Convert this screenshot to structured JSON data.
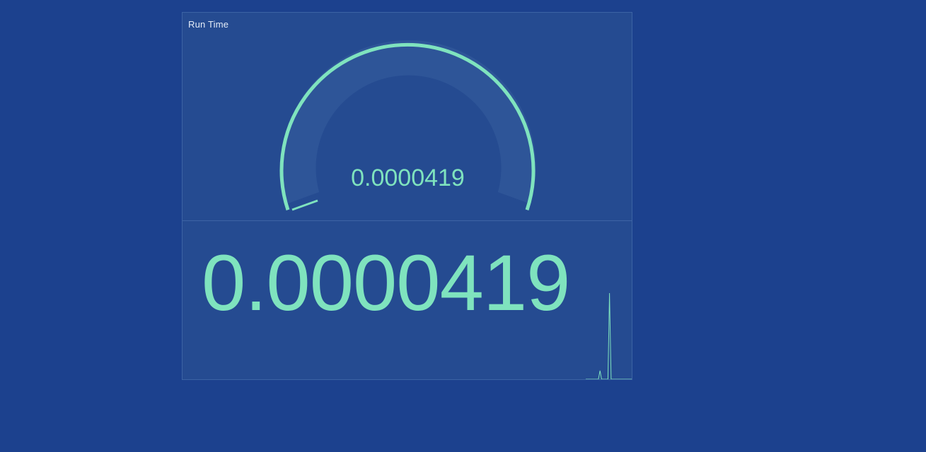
{
  "panel": {
    "title": "Run Time"
  },
  "gauge": {
    "value": "0.0000419",
    "fraction": 0.02,
    "colors": {
      "arc": "#7fe3be",
      "track": "#2e5598",
      "inner": "#254b91"
    }
  },
  "stat": {
    "value": "0.0000419",
    "color": "#7fe3be"
  },
  "sparkline": {
    "values": [
      0,
      0,
      0,
      0,
      0,
      0,
      0,
      0,
      0,
      0.1,
      0,
      0,
      0,
      0,
      0,
      1,
      0,
      0,
      0,
      0,
      0,
      0,
      0,
      0,
      0,
      0,
      0,
      0,
      0,
      0
    ]
  }
}
